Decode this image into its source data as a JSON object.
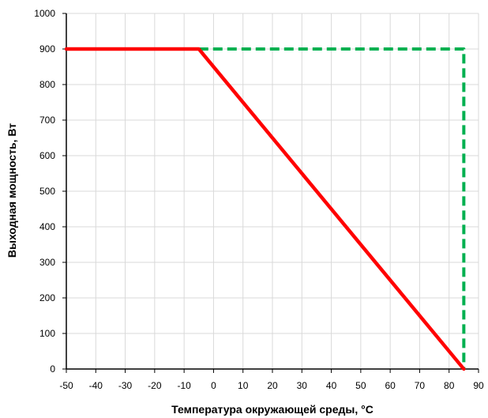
{
  "chart_data": {
    "type": "line",
    "title": "",
    "xlabel": "Температура окружающей среды, °C",
    "ylabel": "Выходная мощность, Вт",
    "xlim": [
      -50,
      90
    ],
    "ylim": [
      0,
      1000
    ],
    "x_ticks": [
      -50,
      -40,
      -30,
      -20,
      -10,
      0,
      10,
      20,
      30,
      40,
      50,
      60,
      70,
      80,
      90
    ],
    "y_ticks": [
      0,
      100,
      200,
      300,
      400,
      500,
      600,
      700,
      800,
      900,
      1000
    ],
    "grid": true,
    "legend": "none",
    "series": [
      {
        "color": "#ff0000",
        "style": "solid",
        "x": [
          -50,
          -5,
          85
        ],
        "y": [
          900,
          900,
          0
        ]
      },
      {
        "color": "#00b050",
        "style": "dashed",
        "x": [
          -5,
          85,
          85
        ],
        "y": [
          900,
          900,
          0
        ]
      }
    ]
  }
}
